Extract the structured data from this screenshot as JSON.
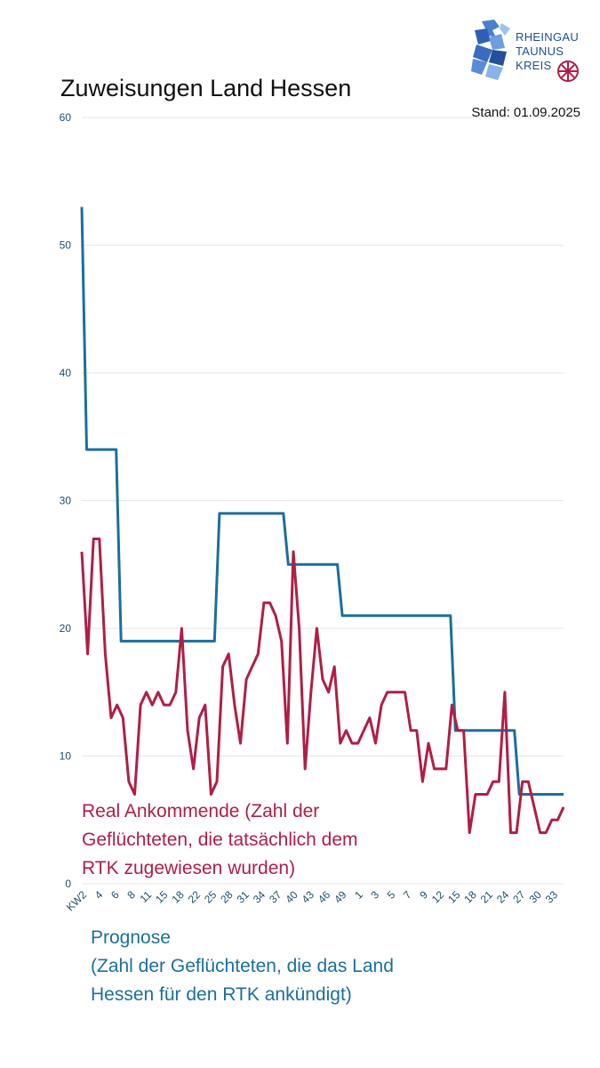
{
  "header": {
    "title": "Zuweisungen Land Hessen",
    "stand": "Stand: 01.09.2025"
  },
  "logo": {
    "lines": [
      "RHEINGAU",
      "TAUNUS",
      "KREIS"
    ]
  },
  "colors": {
    "prognose": "#1b6f9c",
    "real": "#b01e45",
    "grid": "#e6e6e6"
  },
  "annotations": {
    "real_lines": [
      "Real Ankommende (Zahl der",
      "Geflüchteten, die tatsächlich dem",
      "RTK zugewiesen wurden)"
    ],
    "prognose_lines": [
      "Prognose",
      "(Zahl der Geflüchteten, die das Land",
      "Hessen für den RTK ankündigt)"
    ]
  },
  "chart_data": {
    "type": "line",
    "title": "Zuweisungen Land Hessen",
    "ylim": [
      0,
      60
    ],
    "yticks": [
      0,
      10,
      20,
      30,
      40,
      50,
      60
    ],
    "grid": true,
    "xtick_labels": [
      "KW2",
      "4",
      "6",
      "8",
      "11",
      "15",
      "18",
      "22",
      "25",
      "28",
      "31",
      "34",
      "37",
      "40",
      "43",
      "46",
      "49",
      "1",
      "3",
      "5",
      "7",
      "9",
      "12",
      "15",
      "18",
      "21",
      "24",
      "27",
      "30",
      "33"
    ],
    "series": [
      {
        "name": "Prognose",
        "values": [
          53,
          34,
          34,
          34,
          34,
          34,
          34,
          34,
          19,
          19,
          19,
          19,
          19,
          19,
          19,
          19,
          19,
          19,
          19,
          19,
          19,
          19,
          19,
          19,
          19,
          19,
          19,
          19,
          29,
          29,
          29,
          29,
          29,
          29,
          29,
          29,
          29,
          29,
          29,
          29,
          29,
          29,
          25,
          25,
          25,
          25,
          25,
          25,
          25,
          25,
          25,
          25,
          25,
          21,
          21,
          21,
          21,
          21,
          21,
          21,
          21,
          21,
          21,
          21,
          21,
          21,
          21,
          21,
          21,
          21,
          21,
          21,
          21,
          21,
          21,
          21,
          12,
          12,
          12,
          12,
          12,
          12,
          12,
          12,
          12,
          12,
          12,
          12,
          12,
          7,
          7,
          7,
          7,
          7,
          7,
          7,
          7,
          7,
          7
        ]
      },
      {
        "name": "Real Ankommende",
        "values": [
          26,
          18,
          27,
          27,
          18,
          13,
          14,
          13,
          8,
          7,
          14,
          15,
          14,
          15,
          14,
          14,
          15,
          20,
          12,
          9,
          13,
          14,
          7,
          8,
          17,
          18,
          14,
          11,
          16,
          17,
          18,
          22,
          22,
          21,
          19,
          11,
          26,
          20,
          9,
          15,
          20,
          16,
          15,
          17,
          11,
          12,
          11,
          11,
          12,
          13,
          11,
          14,
          15,
          15,
          15,
          15,
          12,
          12,
          8,
          11,
          9,
          9,
          9,
          14,
          12,
          12,
          4,
          7,
          7,
          7,
          8,
          8,
          15,
          4,
          4,
          8,
          8,
          6,
          4,
          4,
          5,
          5,
          6
        ]
      }
    ]
  }
}
